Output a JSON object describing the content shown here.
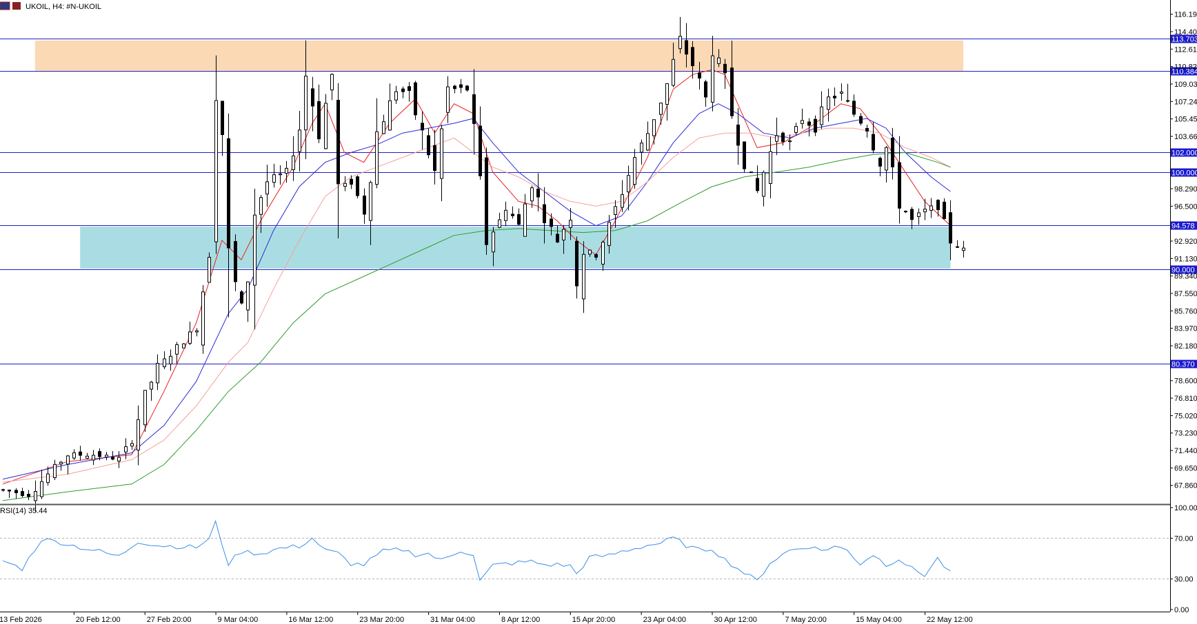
{
  "header": {
    "symbol": "UKOIL",
    "timeframe": "H4",
    "separator": ":",
    "instrument": "#N-UKOIL",
    "label": "UKOIL, H4:  #N-UKOIL"
  },
  "colors": {
    "candle": "#000000",
    "hline": "#1f1fc4",
    "ma_fast": "#e8211f",
    "ma_mid": "#2a2ad6",
    "ma_slow": "#f4a19a",
    "ma_long": "#2e9b2e",
    "rsi_line": "#3b8ee8",
    "resistance_zone": "#fbd9b5",
    "support_zone": "#aadde3",
    "level_label_bg": "#1a1ad0",
    "separator": "#555555",
    "grid_dash": "#b0b0b0"
  },
  "price_axis": {
    "ticks": [
      "116.190",
      "114.400",
      "112.610",
      "110.820",
      "109.030",
      "107.240",
      "105.450",
      "103.660",
      "98.290",
      "96.500",
      "92.920",
      "91.130",
      "89.340",
      "87.550",
      "85.760",
      "83.970",
      "82.180",
      "78.600",
      "76.810",
      "75.020",
      "73.230",
      "71.440",
      "69.650",
      "67.860"
    ],
    "ymin": 66.5,
    "ymax": 116.8
  },
  "levels": [
    {
      "value": 113.703,
      "label": "113.703"
    },
    {
      "value": 110.384,
      "label": "110.384"
    },
    {
      "value": 102.0,
      "label": "102.000"
    },
    {
      "value": 100.0,
      "label": "100.000"
    },
    {
      "value": 94.578,
      "label": "94.578"
    },
    {
      "value": 90.0,
      "label": "90.000"
    },
    {
      "value": 80.37,
      "label": "80.370"
    }
  ],
  "zones": [
    {
      "name": "resistance-zone",
      "from": 110.384,
      "to": 113.5,
      "x_start": 5,
      "x_end": 149
    },
    {
      "name": "support-zone",
      "from": 90.1,
      "to": 94.4,
      "x_start": 12,
      "x_end": 147
    }
  ],
  "time_axis": {
    "labels": [
      "13 Feb 2026",
      "20 Feb 12:00",
      "27 Feb 20:00",
      "9 Mar 04:00",
      "16 Mar 12:00",
      "23 Mar 20:00",
      "31 Mar 04:00",
      "8 Apr 12:00",
      "15 Apr 20:00",
      "23 Apr 04:00",
      "30 Apr 12:00",
      "7 May 20:00",
      "15 May 04:00",
      "22 May 12:00"
    ],
    "label_bars": [
      0,
      11,
      22,
      33,
      44,
      55,
      66,
      77,
      88,
      99,
      110,
      121,
      132,
      143
    ]
  },
  "rsi": {
    "title": "RSI(14) 35.44",
    "levels": [
      70,
      30
    ],
    "ticks": [
      "100.00",
      "70.00",
      "30.00",
      "0.00"
    ]
  },
  "chart_data": {
    "type": "candlestick",
    "title": "UKOIL, H4:  #N-UKOIL",
    "bar_count": 150,
    "ylim": [
      66.5,
      116.8
    ],
    "price_path": [
      [
        0,
        67.4
      ],
      [
        4,
        66.9
      ],
      [
        7,
        69.0
      ],
      [
        10,
        71.0
      ],
      [
        14,
        71.0
      ],
      [
        18,
        70.6
      ],
      [
        20,
        72.5
      ],
      [
        22,
        77.0
      ],
      [
        24,
        80.0
      ],
      [
        27,
        82.0
      ],
      [
        30,
        84.0
      ],
      [
        32,
        92.0
      ],
      [
        33,
        110.5
      ],
      [
        34,
        104.0
      ],
      [
        35,
        91.0
      ],
      [
        37,
        86.0
      ],
      [
        38,
        89.0
      ],
      [
        39,
        96.0
      ],
      [
        41,
        99.0
      ],
      [
        44,
        100.0
      ],
      [
        46,
        104.5
      ],
      [
        47,
        110.0
      ],
      [
        49,
        104.0
      ],
      [
        51,
        110.0
      ],
      [
        52,
        98.0
      ],
      [
        54,
        99.0
      ],
      [
        56,
        96.0
      ],
      [
        58,
        104.0
      ],
      [
        61,
        108.5
      ],
      [
        63,
        108.0
      ],
      [
        65,
        104.0
      ],
      [
        67,
        100.0
      ],
      [
        69,
        108.5
      ],
      [
        72,
        108.5
      ],
      [
        73,
        104.0
      ],
      [
        75,
        93.0
      ],
      [
        77,
        95.0
      ],
      [
        78,
        96.5
      ],
      [
        80,
        94.5
      ],
      [
        82,
        99.0
      ],
      [
        84,
        95.5
      ],
      [
        86,
        93.0
      ],
      [
        88,
        95.5
      ],
      [
        89,
        89.0
      ],
      [
        90,
        92.0
      ],
      [
        92,
        91.5
      ],
      [
        94,
        94.5
      ],
      [
        96,
        98.0
      ],
      [
        98,
        101.5
      ],
      [
        100,
        104.0
      ],
      [
        103,
        109.0
      ],
      [
        105,
        113.5
      ],
      [
        107,
        111.0
      ],
      [
        109,
        107.5
      ],
      [
        110,
        113.0
      ],
      [
        112,
        109.5
      ],
      [
        113,
        106.0
      ],
      [
        115,
        101.0
      ],
      [
        117,
        98.0
      ],
      [
        118,
        100.0
      ],
      [
        120,
        104.0
      ],
      [
        122,
        103.0
      ],
      [
        124,
        105.5
      ],
      [
        126,
        104.5
      ],
      [
        128,
        107.5
      ],
      [
        130,
        108.0
      ],
      [
        132,
        106.0
      ],
      [
        134,
        104.5
      ],
      [
        136,
        101.0
      ],
      [
        137,
        102.5
      ],
      [
        139,
        97.0
      ],
      [
        141,
        95.0
      ],
      [
        143,
        96.0
      ],
      [
        145,
        96.5
      ],
      [
        147,
        93.0
      ],
      [
        149,
        92.0
      ],
      [
        150,
        92.2
      ]
    ],
    "moving_averages": [
      {
        "name": "MA fast",
        "color_key": "ma_fast",
        "path": [
          [
            0,
            68.0
          ],
          [
            10,
            70.3
          ],
          [
            20,
            71.0
          ],
          [
            25,
            77.5
          ],
          [
            30,
            84.5
          ],
          [
            34,
            93.0
          ],
          [
            37,
            91.0
          ],
          [
            40,
            95.0
          ],
          [
            45,
            100.5
          ],
          [
            48,
            105.0
          ],
          [
            50,
            107.0
          ],
          [
            53,
            102.0
          ],
          [
            56,
            101.0
          ],
          [
            60,
            105.0
          ],
          [
            64,
            107.5
          ],
          [
            67,
            104.0
          ],
          [
            70,
            107.0
          ],
          [
            73,
            106.0
          ],
          [
            76,
            100.0
          ],
          [
            80,
            97.0
          ],
          [
            83,
            96.5
          ],
          [
            86,
            95.0
          ],
          [
            89,
            93.0
          ],
          [
            92,
            91.5
          ],
          [
            95,
            95.0
          ],
          [
            100,
            101.5
          ],
          [
            104,
            108.5
          ],
          [
            107,
            110.0
          ],
          [
            110,
            110.5
          ],
          [
            112,
            110.0
          ],
          [
            114,
            107.0
          ],
          [
            117,
            102.5
          ],
          [
            121,
            103.0
          ],
          [
            125,
            104.5
          ],
          [
            130,
            107.0
          ],
          [
            133,
            106.5
          ],
          [
            136,
            104.0
          ],
          [
            139,
            101.0
          ],
          [
            143,
            97.0
          ],
          [
            147,
            94.5
          ]
        ]
      },
      {
        "name": "MA mid",
        "color_key": "ma_mid",
        "path": [
          [
            0,
            68.5
          ],
          [
            10,
            70.0
          ],
          [
            20,
            71.2
          ],
          [
            25,
            74.0
          ],
          [
            30,
            78.5
          ],
          [
            35,
            85.5
          ],
          [
            38,
            88.0
          ],
          [
            42,
            94.0
          ],
          [
            46,
            98.5
          ],
          [
            50,
            101.0
          ],
          [
            54,
            102.0
          ],
          [
            58,
            102.8
          ],
          [
            62,
            104.0
          ],
          [
            66,
            104.5
          ],
          [
            70,
            105.0
          ],
          [
            73,
            105.5
          ],
          [
            76,
            103.0
          ],
          [
            80,
            100.0
          ],
          [
            84,
            98.0
          ],
          [
            88,
            96.0
          ],
          [
            92,
            94.5
          ],
          [
            96,
            95.5
          ],
          [
            100,
            99.0
          ],
          [
            104,
            103.0
          ],
          [
            108,
            106.0
          ],
          [
            111,
            107.0
          ],
          [
            114,
            106.0
          ],
          [
            118,
            104.0
          ],
          [
            122,
            103.5
          ],
          [
            126,
            104.5
          ],
          [
            130,
            105.0
          ],
          [
            134,
            105.5
          ],
          [
            137,
            104.5
          ],
          [
            140,
            102.0
          ],
          [
            144,
            99.5
          ],
          [
            147,
            98.0
          ]
        ]
      },
      {
        "name": "MA slow",
        "color_key": "ma_slow",
        "path": [
          [
            0,
            68.2
          ],
          [
            10,
            69.0
          ],
          [
            20,
            70.5
          ],
          [
            25,
            72.5
          ],
          [
            30,
            76.0
          ],
          [
            35,
            80.5
          ],
          [
            38,
            82.5
          ],
          [
            42,
            88.0
          ],
          [
            46,
            93.0
          ],
          [
            50,
            97.5
          ],
          [
            54,
            99.5
          ],
          [
            58,
            100.5
          ],
          [
            62,
            101.5
          ],
          [
            66,
            102.5
          ],
          [
            70,
            103.5
          ],
          [
            73,
            102.0
          ],
          [
            76,
            100.5
          ],
          [
            80,
            99.5
          ],
          [
            84,
            98.0
          ],
          [
            88,
            97.0
          ],
          [
            92,
            96.5
          ],
          [
            96,
            97.0
          ],
          [
            100,
            99.0
          ],
          [
            104,
            101.5
          ],
          [
            108,
            103.5
          ],
          [
            112,
            104.0
          ],
          [
            116,
            104.0
          ],
          [
            120,
            103.5
          ],
          [
            124,
            104.0
          ],
          [
            128,
            104.5
          ],
          [
            132,
            104.5
          ],
          [
            136,
            104.0
          ],
          [
            140,
            102.5
          ],
          [
            144,
            101.5
          ],
          [
            147,
            100.5
          ]
        ]
      },
      {
        "name": "MA long",
        "color_key": "ma_long",
        "path": [
          [
            0,
            66.3
          ],
          [
            10,
            67.2
          ],
          [
            20,
            68.0
          ],
          [
            25,
            70.0
          ],
          [
            30,
            73.5
          ],
          [
            35,
            77.5
          ],
          [
            40,
            80.5
          ],
          [
            45,
            84.5
          ],
          [
            50,
            87.5
          ],
          [
            55,
            89.0
          ],
          [
            60,
            90.5
          ],
          [
            65,
            92.0
          ],
          [
            70,
            93.5
          ],
          [
            75,
            94.0
          ],
          [
            80,
            94.2
          ],
          [
            85,
            94.0
          ],
          [
            90,
            93.8
          ],
          [
            95,
            94.0
          ],
          [
            100,
            95.0
          ],
          [
            105,
            96.8
          ],
          [
            110,
            98.5
          ],
          [
            115,
            99.5
          ],
          [
            120,
            100.0
          ],
          [
            125,
            100.5
          ],
          [
            130,
            101.2
          ],
          [
            135,
            101.8
          ],
          [
            140,
            102.0
          ],
          [
            145,
            101.0
          ],
          [
            147,
            100.5
          ]
        ]
      }
    ],
    "rsi_series": {
      "name": "RSI(14)",
      "ylim": [
        0,
        100
      ],
      "path": [
        [
          0,
          48
        ],
        [
          3,
          40
        ],
        [
          6,
          69
        ],
        [
          9,
          66
        ],
        [
          12,
          61
        ],
        [
          15,
          57
        ],
        [
          18,
          52
        ],
        [
          21,
          67
        ],
        [
          24,
          63
        ],
        [
          27,
          62
        ],
        [
          30,
          61
        ],
        [
          32,
          69
        ],
        [
          33,
          85
        ],
        [
          35,
          45
        ],
        [
          37,
          57
        ],
        [
          40,
          55
        ],
        [
          43,
          60
        ],
        [
          46,
          62
        ],
        [
          48,
          70
        ],
        [
          50,
          58
        ],
        [
          52,
          55
        ],
        [
          54,
          45
        ],
        [
          56,
          44
        ],
        [
          59,
          57
        ],
        [
          62,
          59
        ],
        [
          64,
          54
        ],
        [
          66,
          55
        ],
        [
          68,
          48
        ],
        [
          71,
          58
        ],
        [
          73,
          54
        ],
        [
          74,
          28
        ],
        [
          76,
          43
        ],
        [
          78,
          45
        ],
        [
          80,
          46
        ],
        [
          82,
          47
        ],
        [
          84,
          44
        ],
        [
          86,
          44
        ],
        [
          88,
          43
        ],
        [
          89,
          35
        ],
        [
          91,
          51
        ],
        [
          94,
          53
        ],
        [
          96,
          57
        ],
        [
          98,
          60
        ],
        [
          100,
          63
        ],
        [
          102,
          65
        ],
        [
          104,
          70
        ],
        [
          106,
          63
        ],
        [
          108,
          58
        ],
        [
          110,
          60
        ],
        [
          112,
          49
        ],
        [
          115,
          36
        ],
        [
          117,
          28
        ],
        [
          119,
          46
        ],
        [
          122,
          58
        ],
        [
          125,
          62
        ],
        [
          127,
          58
        ],
        [
          129,
          62
        ],
        [
          131,
          58
        ],
        [
          133,
          45
        ],
        [
          135,
          54
        ],
        [
          137,
          44
        ],
        [
          139,
          50
        ],
        [
          141,
          40
        ],
        [
          143,
          34
        ],
        [
          145,
          50
        ],
        [
          147,
          35.44
        ]
      ]
    }
  }
}
